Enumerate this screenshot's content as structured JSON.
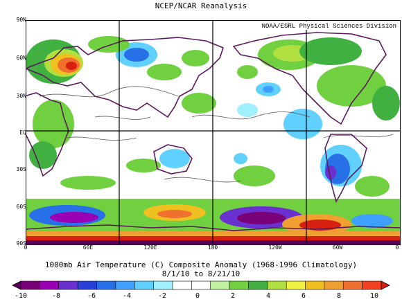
{
  "header": {
    "title": "NCEP/NCAR Reanalysis",
    "credit": "NOAA/ESRL Physical Sciences Division"
  },
  "map": {
    "lat_labels": [
      "90N",
      "60N",
      "30N",
      "EQ",
      "30S",
      "60S",
      "90S"
    ],
    "lon_labels": [
      "0",
      "60E",
      "120E",
      "180",
      "120W",
      "60W",
      "0"
    ],
    "colors": {
      "coast": "#5a1a5a",
      "grid": "#000000",
      "contour": "#555555"
    }
  },
  "caption": {
    "line1": "1000mb Air Temperature (C) Composite Anomaly (1968-1996 Climatology)",
    "line2": "8/1/10  to 8/21/10"
  },
  "colorbar": {
    "labels": [
      "-10",
      "-8",
      "-6",
      "-4",
      "-2",
      "0",
      "2",
      "4",
      "6",
      "8",
      "10"
    ],
    "colors": [
      "#5a005a",
      "#7a0078",
      "#9a00b4",
      "#6a30d0",
      "#2840d8",
      "#2870e8",
      "#40a0ff",
      "#60d0ff",
      "#a0f0ff",
      "#ffffff",
      "#ffffff",
      "#c0f0a0",
      "#70d040",
      "#40b040",
      "#b0e040",
      "#f0f040",
      "#f0c020",
      "#f0a030",
      "#f07030",
      "#f04020",
      "#d82010"
    ]
  }
}
